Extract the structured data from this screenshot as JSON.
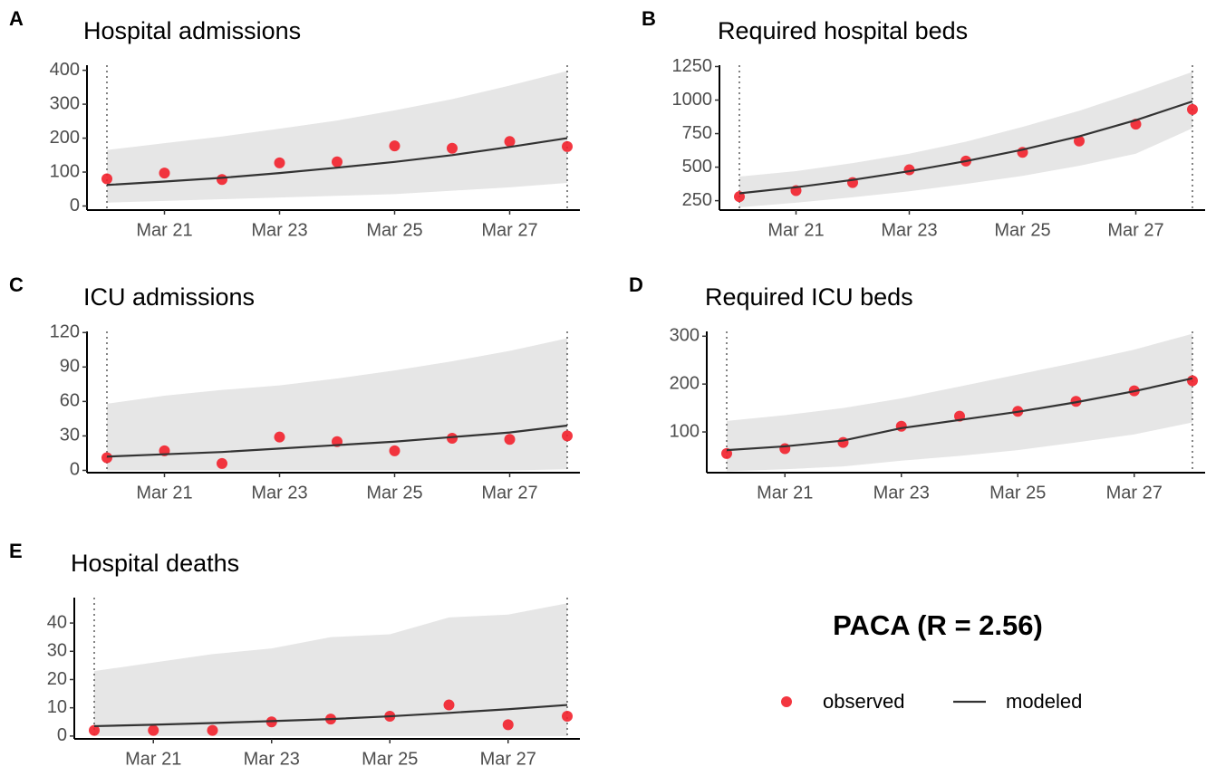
{
  "figure_title": "PACA (R = 2.56)",
  "chart_data": [
    {
      "type": "line",
      "label": "A",
      "title": "Hospital admissions",
      "categories": [
        null,
        "Mar 21",
        null,
        "Mar 23",
        null,
        "Mar 25",
        null,
        "Mar 27",
        null
      ],
      "ylim": [
        -12,
        415
      ],
      "yticks": [
        0,
        100,
        200,
        300,
        400
      ],
      "band": {
        "color": "#e6e6e6",
        "lower": [
          10,
          15,
          20,
          25,
          30,
          35,
          45,
          55,
          68
        ],
        "upper": [
          165,
          185,
          205,
          228,
          252,
          282,
          315,
          355,
          398
        ]
      },
      "series": [
        {
          "name": "observed",
          "style": "points",
          "color": "#f2202b",
          "values": [
            80,
            97,
            78,
            127,
            130,
            177,
            170,
            190,
            175
          ]
        },
        {
          "name": "modeled",
          "style": "line",
          "color": "#333333",
          "values": [
            62,
            72,
            83,
            97,
            113,
            130,
            150,
            174,
            200
          ]
        }
      ]
    },
    {
      "type": "line",
      "label": "B",
      "title": "Required hospital beds",
      "categories": [
        null,
        "Mar 21",
        null,
        "Mar 23",
        null,
        "Mar 25",
        null,
        "Mar 27",
        null
      ],
      "ylim": [
        180,
        1260
      ],
      "yticks": [
        250,
        500,
        750,
        1000,
        1250
      ],
      "band": {
        "color": "#e6e6e6",
        "lower": [
          200,
          235,
          275,
          320,
          375,
          435,
          510,
          600,
          790
        ],
        "upper": [
          430,
          470,
          530,
          600,
          690,
          800,
          920,
          1060,
          1210
        ]
      },
      "series": [
        {
          "name": "observed",
          "style": "points",
          "color": "#f2202b",
          "values": [
            280,
            325,
            385,
            480,
            545,
            610,
            695,
            820,
            930
          ]
        },
        {
          "name": "modeled",
          "style": "line",
          "color": "#333333",
          "values": [
            305,
            350,
            405,
            470,
            545,
            630,
            730,
            850,
            990
          ]
        }
      ]
    },
    {
      "type": "line",
      "label": "C",
      "title": "ICU admissions",
      "categories": [
        null,
        "Mar 21",
        null,
        "Mar 23",
        null,
        "Mar 25",
        null,
        "Mar 27",
        null
      ],
      "ylim": [
        -2,
        121
      ],
      "yticks": [
        0,
        30,
        60,
        90,
        120
      ],
      "band": {
        "color": "#e6e6e6",
        "lower": [
          0,
          0,
          0,
          0,
          0,
          0,
          0,
          0,
          1
        ],
        "upper": [
          58,
          65,
          70,
          74,
          80,
          87,
          95,
          104,
          115
        ]
      },
      "series": [
        {
          "name": "observed",
          "style": "points",
          "color": "#f2202b",
          "values": [
            11,
            17,
            6,
            29,
            25,
            17,
            28,
            27,
            30
          ]
        },
        {
          "name": "modeled",
          "style": "line",
          "color": "#333333",
          "values": [
            12,
            14,
            16,
            19,
            22,
            25,
            29,
            33,
            39
          ]
        }
      ]
    },
    {
      "type": "line",
      "label": "D",
      "title": "Required ICU beds",
      "categories": [
        null,
        "Mar 21",
        null,
        "Mar 23",
        null,
        "Mar 25",
        null,
        "Mar 27",
        null
      ],
      "ylim": [
        15,
        310
      ],
      "yticks": [
        100,
        200,
        300
      ],
      "band": {
        "color": "#e6e6e6",
        "lower": [
          18,
          22,
          28,
          40,
          50,
          62,
          78,
          95,
          120
        ],
        "upper": [
          123,
          135,
          150,
          170,
          195,
          220,
          245,
          272,
          305
        ]
      },
      "series": [
        {
          "name": "observed",
          "style": "points",
          "color": "#f2202b",
          "values": [
            55,
            65,
            78,
            112,
            133,
            143,
            164,
            186,
            207
          ]
        },
        {
          "name": "modeled",
          "style": "line",
          "color": "#333333",
          "values": [
            62,
            70,
            82,
            108,
            125,
            142,
            162,
            185,
            212
          ]
        }
      ]
    },
    {
      "type": "line",
      "label": "E",
      "title": "Hospital deaths",
      "categories": [
        null,
        "Mar 21",
        null,
        "Mar 23",
        null,
        "Mar 25",
        null,
        "Mar 27",
        null
      ],
      "ylim": [
        -1,
        49
      ],
      "yticks": [
        0,
        10,
        20,
        30,
        40
      ],
      "band": {
        "color": "#e6e6e6",
        "lower": [
          0,
          0,
          0,
          0,
          0,
          0,
          0,
          0,
          0
        ],
        "upper": [
          23,
          26,
          29,
          31,
          35,
          36,
          42,
          43,
          47
        ]
      },
      "series": [
        {
          "name": "observed",
          "style": "points",
          "color": "#f2202b",
          "values": [
            2,
            2,
            2,
            5,
            6,
            7,
            11,
            4,
            7
          ]
        },
        {
          "name": "modeled",
          "style": "line",
          "color": "#333333",
          "values": [
            3.5,
            4,
            4.6,
            5.3,
            6,
            7,
            8.2,
            9.5,
            11
          ]
        }
      ]
    }
  ]
}
